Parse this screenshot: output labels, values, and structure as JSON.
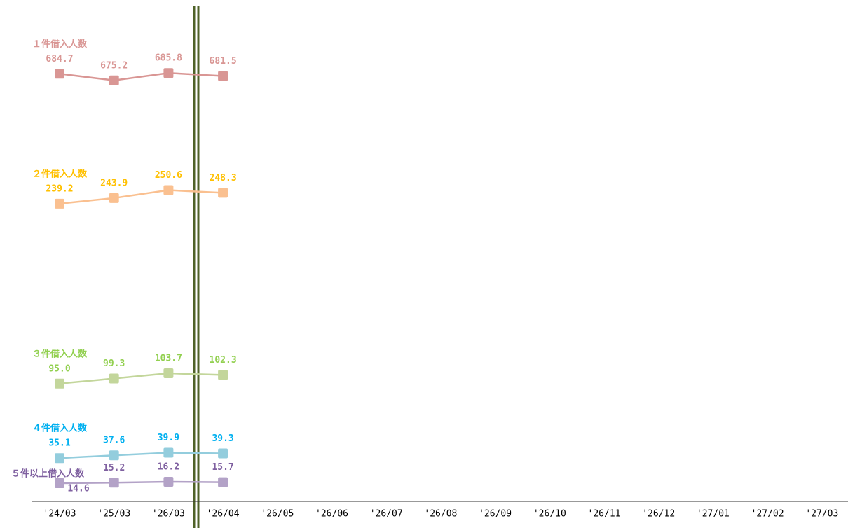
{
  "chart_data": {
    "type": "line",
    "categories": [
      "'24/03",
      "'25/03",
      "'26/03",
      "'26/04",
      "'26/05",
      "'26/06",
      "'26/07",
      "'26/08",
      "'26/09",
      "'26/10",
      "'26/11",
      "'26/12",
      "'27/01",
      "'27/02",
      "'27/03"
    ],
    "series": [
      {
        "name": "１件借入人数",
        "color": "#d99694",
        "label_color": "#d99694",
        "ylim": [
          630,
          730
        ],
        "values": [
          684.7,
          675.2,
          685.8,
          681.5,
          null,
          null,
          null,
          null,
          null,
          null,
          null,
          null,
          null,
          null,
          null
        ]
      },
      {
        "name": "２件借入人数",
        "color": "#fac090",
        "label_color": "#ffc000",
        "ylim": [
          222,
          281
        ],
        "values": [
          239.2,
          243.9,
          250.6,
          248.3,
          null,
          null,
          null,
          null,
          null,
          null,
          null,
          null,
          null,
          null,
          null
        ],
        "value_labels": [
          "239.2",
          "243.9",
          "250.6",
          "248.3",
          null,
          null,
          null,
          null,
          null,
          null,
          null,
          null,
          null,
          null,
          null
        ]
      },
      {
        "name": "３件借入人数",
        "color": "#c3d69b",
        "label_color": "#92d050",
        "ylim": [
          76,
          135
        ],
        "values": [
          95.0,
          99.3,
          103.7,
          102.3,
          null,
          null,
          null,
          null,
          null,
          null,
          null,
          null,
          null,
          null,
          null
        ],
        "value_labels": [
          "95.0",
          "99.3",
          "103.7",
          "102.3",
          null,
          null,
          null,
          null,
          null,
          null,
          null,
          null,
          null,
          null,
          null
        ]
      },
      {
        "name": "４件借入人数",
        "color": "#93cddd",
        "label_color": "#00b0f0",
        "ylim": [
          19,
          44
        ],
        "values": [
          35.1,
          37.6,
          39.9,
          39.3,
          null,
          null,
          null,
          null,
          null,
          null,
          null,
          null,
          null,
          null,
          null
        ]
      },
      {
        "name": "５件以上借入人数",
        "color": "#b3a2c7",
        "label_color": "#7f60a0",
        "ylim": [
          6.6,
          22.6
        ],
        "values": [
          14.6,
          15.2,
          16.2,
          15.7,
          null,
          null,
          null,
          null,
          null,
          null,
          null,
          null,
          null,
          null,
          null
        ]
      }
    ]
  }
}
